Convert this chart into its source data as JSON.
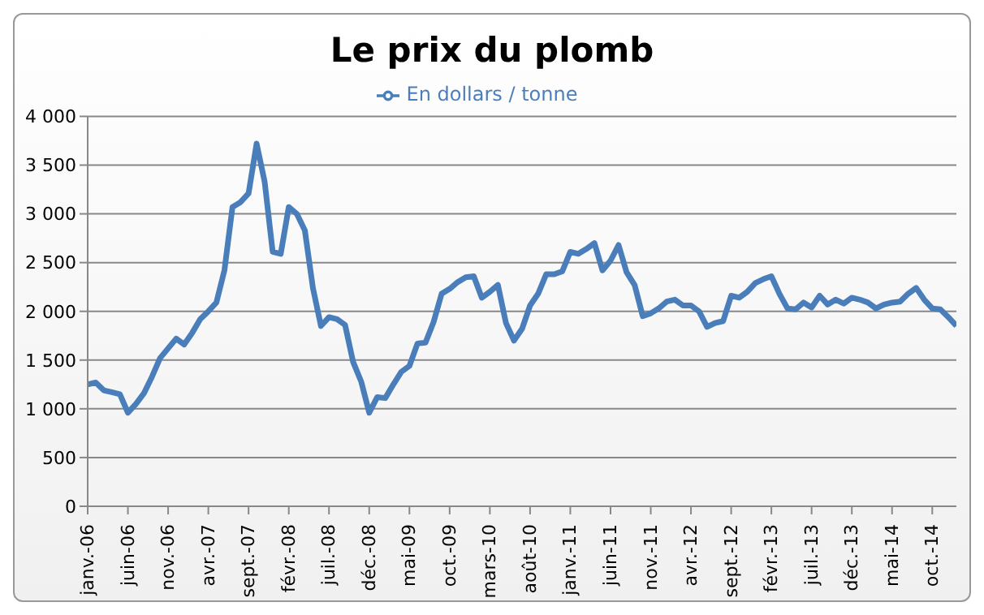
{
  "chart_data": {
    "type": "line",
    "title": "Le prix du plomb",
    "categories": [
      "janv.-06",
      null,
      null,
      null,
      null,
      "juin-06",
      null,
      null,
      null,
      null,
      "nov.-06",
      null,
      null,
      null,
      null,
      "avr.-07",
      null,
      null,
      null,
      null,
      "sept.-07",
      null,
      null,
      null,
      null,
      "févr.-08",
      null,
      null,
      null,
      null,
      "juil.-08",
      null,
      null,
      null,
      null,
      "déc.-08",
      null,
      null,
      null,
      null,
      "mai-09",
      null,
      null,
      null,
      null,
      "oct.-09",
      null,
      null,
      null,
      null,
      "mars-10",
      null,
      null,
      null,
      null,
      "août-10",
      null,
      null,
      null,
      null,
      "janv.-11",
      null,
      null,
      null,
      null,
      "juin-11",
      null,
      null,
      null,
      null,
      "nov.-11",
      null,
      null,
      null,
      null,
      "avr.-12",
      null,
      null,
      null,
      null,
      "sept.-12",
      null,
      null,
      null,
      null,
      "févr.-13",
      null,
      null,
      null,
      null,
      "juil.-13",
      null,
      null,
      null,
      null,
      "déc.-13",
      null,
      null,
      null,
      null,
      "mai-14",
      null,
      null,
      null,
      null,
      "oct.-14",
      null,
      null,
      null
    ],
    "series": [
      {
        "name": "En dollars / tonne",
        "color": "#4a7ebb",
        "values": [
          1250,
          1270,
          1190,
          1170,
          1150,
          960,
          1050,
          1160,
          1330,
          1520,
          1620,
          1720,
          1660,
          1780,
          1920,
          2000,
          2090,
          2420,
          3070,
          3120,
          3210,
          3720,
          3330,
          2610,
          2590,
          3070,
          3000,
          2830,
          2240,
          1850,
          1940,
          1920,
          1860,
          1480,
          1280,
          960,
          1120,
          1110,
          1250,
          1380,
          1440,
          1670,
          1680,
          1890,
          2180,
          2230,
          2300,
          2350,
          2360,
          2140,
          2200,
          2270,
          1880,
          1700,
          1820,
          2060,
          2180,
          2380,
          2380,
          2410,
          2610,
          2590,
          2640,
          2700,
          2420,
          2520,
          2680,
          2400,
          2270,
          1950,
          1980,
          2030,
          2100,
          2120,
          2060,
          2060,
          2000,
          1840,
          1880,
          1900,
          2160,
          2140,
          2200,
          2290,
          2330,
          2360,
          2180,
          2030,
          2020,
          2090,
          2040,
          2160,
          2070,
          2120,
          2080,
          2140,
          2120,
          2090,
          2030,
          2070,
          2090,
          2100,
          2180,
          2240,
          2120,
          2030,
          2020,
          1940,
          1850
        ]
      }
    ],
    "ylim": [
      0,
      4000
    ],
    "yticks": [
      0,
      500,
      {
        "value": 1000,
        "label": "1 000"
      },
      {
        "value": 1500,
        "label": "1 500"
      },
      {
        "value": 2000,
        "label": "2 000"
      },
      {
        "value": 2500,
        "label": "2 500"
      },
      {
        "value": 3000,
        "label": "3 000"
      },
      {
        "value": 3500,
        "label": "3 500"
      },
      {
        "value": 4000,
        "label": "4 000"
      }
    ],
    "grid": "y",
    "legend": "top",
    "marker": "none",
    "line_style": "solid"
  }
}
